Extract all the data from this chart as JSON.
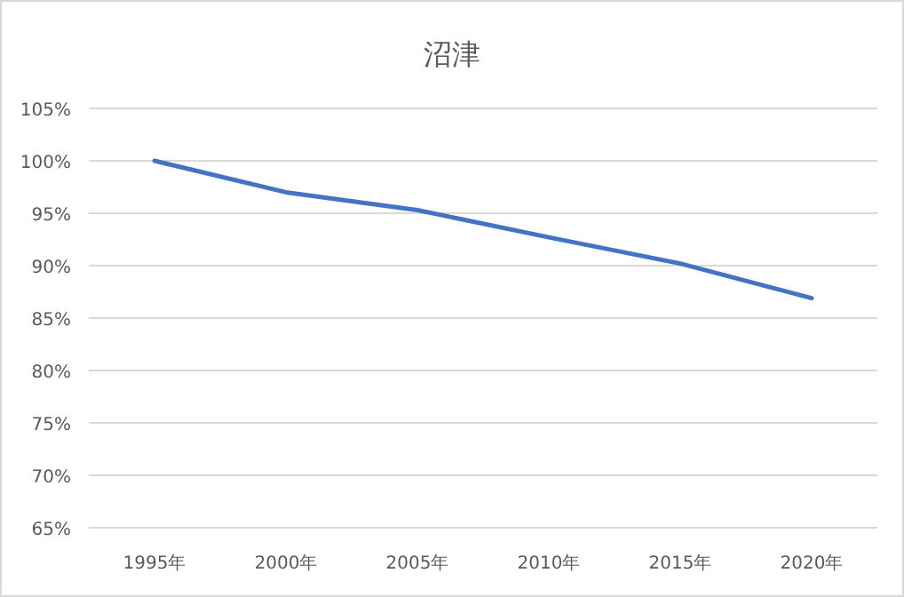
{
  "chart_data": {
    "type": "line",
    "title": "沼津",
    "categories": [
      "1995年",
      "2000年",
      "2005年",
      "2010年",
      "2015年",
      "2020年"
    ],
    "series": [
      {
        "color": "#4472c4",
        "values": [
          100,
          97,
          95.3,
          92.7,
          90.2,
          86.9
        ]
      }
    ],
    "ylim": [
      65,
      105
    ],
    "yticks": [
      {
        "value": 65,
        "label": "65%"
      },
      {
        "value": 70,
        "label": "70%"
      },
      {
        "value": 75,
        "label": "75%"
      },
      {
        "value": 80,
        "label": "80%"
      },
      {
        "value": 85,
        "label": "85%"
      },
      {
        "value": 90,
        "label": "90%"
      },
      {
        "value": 95,
        "label": "95%"
      },
      {
        "value": 100,
        "label": "100%"
      },
      {
        "value": 105,
        "label": "105%"
      }
    ],
    "grid": "y",
    "marker": "none",
    "line_style": "solid"
  }
}
